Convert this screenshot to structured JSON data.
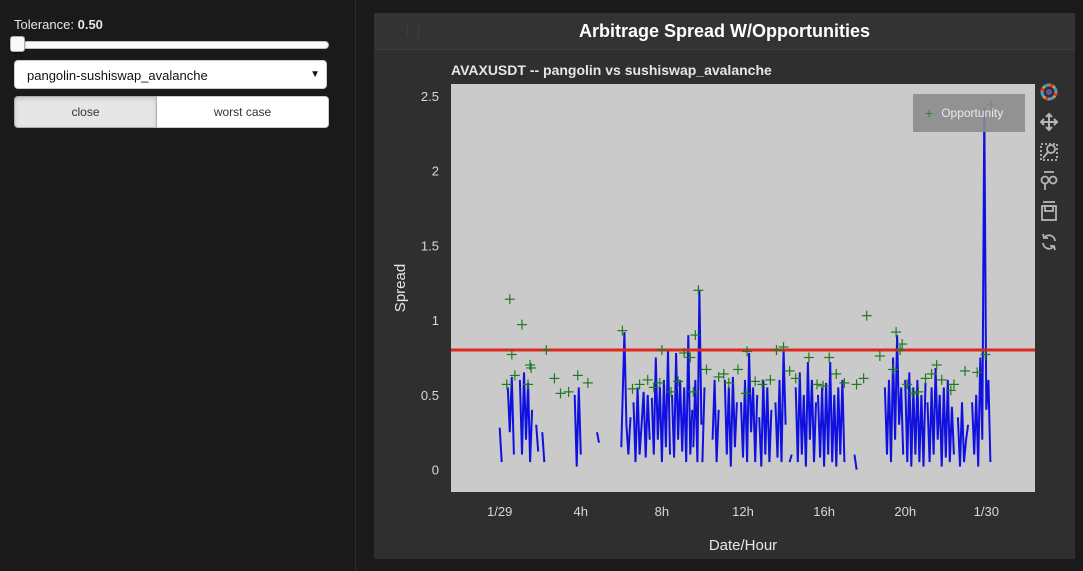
{
  "sidebar": {
    "tolerance_label": "Tolerance:",
    "tolerance_value": "0.50",
    "tolerance_fraction": 0,
    "pair_select_value": "pangolin-sushiswap_avalanche",
    "buttons": [
      {
        "label": "close",
        "active": true
      },
      {
        "label": "worst case",
        "active": false
      }
    ]
  },
  "panel": {
    "title": "Arbitrage Spread W/Opportunities"
  },
  "chart_data": {
    "type": "line",
    "title": "AVAXUSDT -- pangolin vs sushiswap_avalanche",
    "xlabel": "Date/Hour",
    "ylabel": "Spread",
    "xlim": [
      -2.4,
      26.4
    ],
    "ylim": [
      -0.15,
      2.58
    ],
    "x_ticks": [
      {
        "value": 0,
        "label": "1/29"
      },
      {
        "value": 4,
        "label": "4h"
      },
      {
        "value": 8,
        "label": "8h"
      },
      {
        "value": 12,
        "label": "12h"
      },
      {
        "value": 16,
        "label": "16h"
      },
      {
        "value": 20,
        "label": "20h"
      },
      {
        "value": 24,
        "label": "1/30"
      }
    ],
    "y_ticks": [
      0,
      0.5,
      1,
      1.5,
      2,
      2.5
    ],
    "y_tick_labels": [
      "0",
      "0.5",
      "1",
      "1.5",
      "2",
      "2.5"
    ],
    "threshold": 0.8,
    "grid": false,
    "legend_position": "top-right",
    "colors": {
      "spread": "#1010e0",
      "threshold": "#e0281e",
      "opportunity": "#1f7a1f",
      "plot_bg": "#cacaca"
    },
    "series": [
      {
        "style": "line",
        "segments": [
          {
            "x": [
              0.0,
              0.1
            ],
            "y": [
              0.28,
              0.05
            ]
          },
          {
            "x": [
              0.4,
              0.5,
              0.6,
              0.7
            ],
            "y": [
              0.55,
              0.25,
              0.62,
              0.1
            ]
          },
          {
            "x": [
              1.0,
              1.1,
              1.2,
              1.3,
              1.4,
              1.5,
              1.6
            ],
            "y": [
              0.6,
              0.1,
              0.65,
              0.2,
              0.58,
              0.05,
              0.4
            ]
          },
          {
            "x": [
              1.8,
              1.9
            ],
            "y": [
              0.3,
              0.12
            ]
          },
          {
            "x": [
              2.1,
              2.2
            ],
            "y": [
              0.25,
              0.05
            ]
          },
          {
            "x": [
              3.7,
              3.8,
              3.9,
              4.0
            ],
            "y": [
              0.5,
              0.02,
              0.55,
              0.1
            ]
          },
          {
            "x": [
              4.8,
              4.9
            ],
            "y": [
              0.25,
              0.18
            ]
          },
          {
            "x": [
              6.0,
              6.05,
              6.15,
              6.25,
              6.35,
              6.45
            ],
            "y": [
              0.15,
              0.4,
              0.92,
              0.3,
              0.1,
              0.35
            ]
          },
          {
            "x": [
              6.6,
              6.7,
              6.8,
              6.9,
              7.0,
              7.1,
              7.2,
              7.3,
              7.4
            ],
            "y": [
              0.45,
              0.05,
              0.55,
              0.1,
              0.3,
              0.52,
              0.08,
              0.5,
              0.2
            ]
          },
          {
            "x": [
              7.5,
              7.6,
              7.7,
              7.8,
              7.9,
              8.0,
              8.1,
              8.2,
              8.3,
              8.4
            ],
            "y": [
              0.48,
              0.1,
              0.75,
              0.2,
              0.55,
              0.05,
              0.6,
              0.15,
              0.8,
              0.1
            ]
          },
          {
            "x": [
              8.5,
              8.6,
              8.7,
              8.8,
              8.9,
              9.0,
              9.1,
              9.2,
              9.3,
              9.4,
              9.5
            ],
            "y": [
              0.5,
              0.08,
              0.78,
              0.2,
              0.6,
              0.12,
              0.55,
              0.05,
              0.9,
              0.1,
              0.4
            ]
          },
          {
            "x": [
              9.55,
              9.65,
              9.75,
              9.85,
              9.95
            ],
            "y": [
              0.15,
              0.6,
              0.05,
              1.2,
              0.3
            ]
          },
          {
            "x": [
              10.0,
              10.1
            ],
            "y": [
              0.05,
              0.55
            ]
          },
          {
            "x": [
              10.5,
              10.6,
              10.7,
              10.8
            ],
            "y": [
              0.2,
              0.6,
              0.05,
              0.4
            ]
          },
          {
            "x": [
              11.1,
              11.2,
              11.3,
              11.4,
              11.5,
              11.6,
              11.7
            ],
            "y": [
              0.6,
              0.1,
              0.55,
              0.02,
              0.62,
              0.15,
              0.45
            ]
          },
          {
            "x": [
              11.9,
              12.0,
              12.1,
              12.2,
              12.3,
              12.4,
              12.5,
              12.6,
              12.7
            ],
            "y": [
              0.45,
              0.08,
              0.6,
              0.05,
              0.78,
              0.25,
              0.55,
              0.05,
              0.5
            ]
          },
          {
            "x": [
              12.8,
              12.9,
              13.0,
              13.1,
              13.2,
              13.3,
              13.4
            ],
            "y": [
              0.35,
              0.02,
              0.6,
              0.1,
              0.55,
              0.05,
              0.4
            ]
          },
          {
            "x": [
              13.6,
              13.7,
              13.8,
              13.9,
              14.0,
              14.1
            ],
            "y": [
              0.45,
              0.08,
              0.6,
              0.05,
              0.8,
              0.3
            ]
          },
          {
            "x": [
              14.3,
              14.4
            ],
            "y": [
              0.05,
              0.1
            ]
          },
          {
            "x": [
              14.6,
              14.7,
              14.8,
              14.9,
              15.0,
              15.1,
              15.2,
              15.3,
              15.4,
              15.5,
              15.6
            ],
            "y": [
              0.55,
              0.05,
              0.65,
              0.1,
              0.5,
              0.02,
              0.72,
              0.2,
              0.6,
              0.05,
              0.45
            ]
          },
          {
            "x": [
              15.7,
              15.8,
              15.9,
              16.0,
              16.1,
              16.2,
              16.3,
              16.4,
              16.5,
              16.6,
              16.7,
              16.8,
              16.9,
              17.0
            ],
            "y": [
              0.5,
              0.08,
              0.55,
              0.02,
              0.58,
              0.1,
              0.72,
              0.05,
              0.5,
              0.02,
              0.55,
              0.1,
              0.6,
              0.05
            ]
          },
          {
            "x": [
              17.5,
              17.6
            ],
            "y": [
              0.1,
              0.0
            ]
          },
          {
            "x": [
              19.0,
              19.1,
              19.2,
              19.3,
              19.4,
              19.5,
              19.6,
              19.7,
              19.8,
              19.9
            ],
            "y": [
              0.55,
              0.1,
              0.6,
              0.05,
              0.75,
              0.2,
              0.9,
              0.3,
              0.55,
              0.1
            ]
          },
          {
            "x": [
              20.0,
              20.1,
              20.2,
              20.3,
              20.4,
              20.5,
              20.6,
              20.7,
              20.8,
              20.9,
              21.0
            ],
            "y": [
              0.6,
              0.05,
              0.65,
              0.02,
              0.55,
              0.1,
              0.6,
              0.05,
              0.5,
              0.02,
              0.58
            ]
          },
          {
            "x": [
              21.1,
              21.2,
              21.3,
              21.4,
              21.5,
              21.6,
              21.7,
              21.8,
              21.9,
              22.0,
              22.1,
              22.2,
              22.3,
              22.4
            ],
            "y": [
              0.45,
              0.05,
              0.55,
              0.1,
              0.68,
              0.2,
              0.5,
              0.02,
              0.55,
              0.08,
              0.6,
              0.05,
              0.42,
              0.1
            ]
          },
          {
            "x": [
              22.6,
              22.7,
              22.8,
              22.9,
              23.0,
              23.1
            ],
            "y": [
              0.35,
              0.02,
              0.45,
              0.05,
              0.2,
              0.3
            ]
          },
          {
            "x": [
              23.3,
              23.4,
              23.5,
              23.6,
              23.7,
              23.8,
              23.9,
              24.0,
              24.1,
              24.2
            ],
            "y": [
              0.45,
              0.1,
              0.5,
              0.02,
              0.75,
              0.2,
              2.42,
              0.4,
              0.6,
              0.05
            ]
          }
        ]
      },
      {
        "name": "Opportunity",
        "style": "marker",
        "x": [
          0.5,
          0.35,
          0.6,
          0.75,
          1.1,
          1.5,
          1.4,
          1.55,
          2.3,
          2.7,
          3.0,
          3.4,
          3.85,
          4.35,
          6.05,
          6.55,
          6.9,
          7.3,
          7.6,
          7.9,
          8.0,
          8.45,
          8.8,
          9.1,
          9.4,
          9.65,
          9.8,
          9.55,
          10.2,
          10.8,
          11.05,
          11.3,
          11.75,
          12.2,
          12.15,
          12.6,
          12.95,
          13.35,
          13.65,
          14.0,
          14.3,
          14.6,
          15.25,
          15.65,
          15.95,
          16.25,
          16.6,
          17.0,
          17.6,
          17.95,
          18.1,
          18.75,
          19.4,
          19.55,
          19.85,
          19.75,
          20.1,
          20.35,
          20.65,
          21.0,
          21.3,
          21.55,
          21.8,
          22.25,
          22.4,
          22.95,
          23.55,
          23.95,
          24.25
        ],
        "y": [
          1.14,
          0.57,
          0.77,
          0.63,
          0.97,
          0.7,
          0.57,
          0.68,
          0.8,
          0.61,
          0.51,
          0.52,
          0.63,
          0.58,
          0.93,
          0.54,
          0.57,
          0.6,
          0.55,
          0.58,
          0.8,
          0.52,
          0.59,
          0.78,
          0.75,
          0.9,
          1.2,
          0.52,
          0.67,
          0.62,
          0.64,
          0.58,
          0.67,
          0.79,
          0.51,
          0.59,
          0.57,
          0.6,
          0.8,
          0.82,
          0.66,
          0.61,
          0.75,
          0.57,
          0.56,
          0.75,
          0.64,
          0.58,
          0.57,
          0.61,
          1.03,
          0.76,
          0.67,
          0.92,
          0.84,
          0.8,
          0.57,
          0.51,
          0.52,
          0.61,
          0.64,
          0.7,
          0.6,
          0.53,
          0.57,
          0.66,
          0.65,
          0.77,
          2.44
        ]
      }
    ]
  },
  "toolbar": {
    "tools": [
      {
        "icon": "bokeh-logo-icon",
        "interactive": false
      },
      {
        "icon": "pan-icon",
        "interactive": true
      },
      {
        "icon": "box-zoom-icon",
        "interactive": true
      },
      {
        "icon": "wheel-zoom-icon",
        "interactive": true
      },
      {
        "icon": "save-icon",
        "interactive": true
      },
      {
        "icon": "reset-icon",
        "interactive": true
      }
    ]
  }
}
